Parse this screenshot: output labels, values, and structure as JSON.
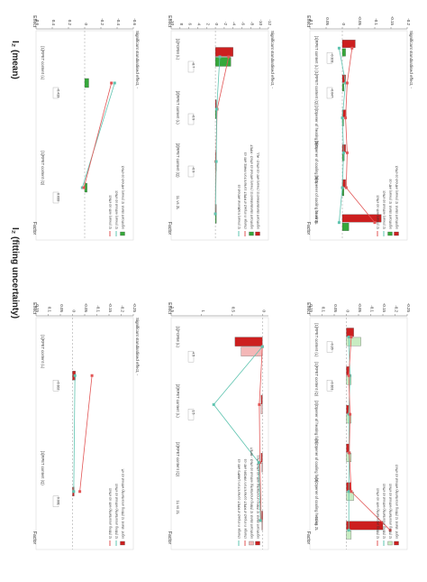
{
  "page": {
    "left_title": "I₂ (fitting uncertainty)",
    "right_title": "I₂ (mean)"
  },
  "colors": {
    "red": "#cc1f1f",
    "green": "#35a83a",
    "pink": "#f4b7b7",
    "lightgreen": "#c8ecc2",
    "redline": "#e25555",
    "greenline": "#5fc4b0",
    "axis": "#777777",
    "grid": "#dddddd"
  },
  "chart_data": [
    {
      "id": "p1",
      "type": "bar",
      "side": "left",
      "ylabel": "Effect",
      "xlabel": "Factor",
      "y2label": "Significant standardised effect, -",
      "ylim": [
        -0.25,
        0.15
      ],
      "yticks": [
        "0.15",
        "0.1",
        "0.05",
        "0",
        "-0.05",
        "-0.1",
        "-0.15",
        "-0.2",
        "-0.25"
      ],
      "categories": [
        "[1]RPET content (L)",
        "[1]RPET content (Q)"
      ],
      "series": [
        {
          "name": "signif. stand. I2 (fitting uncertainty) without o3 eff.",
          "kind": "bar",
          "color": "red",
          "values": [
            -0.012,
            -0.007
          ]
        },
        {
          "name": "I2 (fitting uncertainty) without o3 effect",
          "kind": "line",
          "color": "greenline",
          "values": [
            -0.01,
            -0.005
          ]
        },
        {
          "name": "I2 (fitting uncertainty) with o3 effect",
          "kind": "line",
          "color": "redline",
          "values": [
            -0.08,
            -0.03
          ]
        }
      ],
      "labels": [
        "-0.102",
        "0.001"
      ]
    },
    {
      "id": "p2",
      "type": "bar",
      "side": "right",
      "ylabel": "Effect",
      "xlabel": "Factor",
      "y2label": "Significant standardised effect, -",
      "ylim": [
        -0.6,
        0.6
      ],
      "yticks": [
        "0.6",
        "0.4",
        "0.2",
        "0",
        "-0.2",
        "-0.4",
        "-0.6"
      ],
      "categories": [
        "[1]RPET content (L)",
        "[1]RPET content (Q)"
      ],
      "series": [
        {
          "name": "significant stand. I2 (mean) without o3 effect",
          "kind": "bar",
          "color": "green",
          "values": [
            -0.05,
            -0.03
          ]
        },
        {
          "name": "I2 (mean) without o3 effect",
          "kind": "line",
          "color": "greenline",
          "values": [
            -0.37,
            0.03
          ]
        },
        {
          "name": "I2 (mean) with o3 effect",
          "kind": "line",
          "color": "redline",
          "values": [
            -0.33,
            0.01
          ]
        }
      ],
      "labels": [
        "-0.413",
        "0.033"
      ]
    },
    {
      "id": "p3",
      "type": "bar",
      "side": "left",
      "ylabel": "Effect",
      "xlabel": "Factor",
      "ylim": [
        -0.1,
        1.5
      ],
      "yticks": [
        "1.5",
        "1",
        "0.5",
        "0"
      ],
      "categories": [
        "[1]FORM (L)",
        "[2]RPET content (L)",
        "[2]RPET content (Q)",
        "1L vs 2L"
      ],
      "series": [
        {
          "name": "significant stand. I2 (fitting uncertainty) with o3 effect - ALL",
          "kind": "bar",
          "color": "red",
          "values": [
            0.45,
            0.02,
            0.02,
            0.01
          ]
        },
        {
          "name": "significant stand. I2 (fitting uncertainty) without o3 effect - RPET",
          "kind": "bar",
          "color": "pink",
          "values": [
            0.35,
            0.02,
            0.01,
            0.01
          ]
        },
        {
          "name": "change in impact of RPET content from VIRGIN with o3",
          "kind": "line",
          "color": "redline",
          "values": [
            0.0,
            0.05,
            0.04,
            0.02
          ]
        },
        {
          "name": "change in impact of RPET content from LAMPS with o3",
          "kind": "line",
          "color": "greenline",
          "values": [
            0.0,
            0.8,
            0.06,
            0.03
          ]
        }
      ],
      "labels": [
        "4.5",
        "1.5"
      ]
    },
    {
      "id": "p4",
      "type": "bar",
      "side": "right",
      "ylabel": "Effect",
      "xlabel": "Factor",
      "y2label": "Significant standardised effect, -",
      "ylim": [
        -12,
        10
      ],
      "yticks": [
        "10",
        "8",
        "6",
        "4",
        "2",
        "0",
        "-2",
        "-4",
        "-6",
        "-8",
        "-10",
        "-12"
      ],
      "categories": [
        "[1]FORM (L)",
        "[2]RPET content (L)",
        "[2]RPET content (Q)",
        "1L vs 2L"
      ],
      "series": [
        {
          "name": "significant standardised I2 (mean) with o3 effect - ALL",
          "kind": "bar",
          "color": "red",
          "values": [
            -4.0,
            -0.2,
            -0.1,
            -0.1
          ]
        },
        {
          "name": "significant standardised I2 (mean) without o3 effect - RPET",
          "kind": "bar",
          "color": "green",
          "values": [
            -3.5,
            -0.15,
            -0.1,
            -0.05
          ]
        },
        {
          "name": "change in impact of RPET content from FAKE with o3",
          "kind": "line",
          "color": "redline",
          "values": [
            -3.0,
            -0.4,
            -0.1,
            0.0
          ]
        },
        {
          "name": "I2 (mean) traditional without o3",
          "kind": "line",
          "color": "greenline",
          "values": [
            -1.0,
            -0.3,
            -0.2,
            0.0
          ]
        }
      ],
      "labels": [
        "-8.7",
        "-0.9",
        "-0.9"
      ]
    },
    {
      "id": "p5",
      "type": "bar",
      "side": "left",
      "ylabel": "Effect",
      "xlabel": "Factor",
      "ylim": [
        -0.25,
        0.15
      ],
      "yticks": [
        "0.15",
        "0.1",
        "0.05",
        "0",
        "-0.05",
        "-0.1",
        "-0.15",
        "-0.2",
        "-0.25"
      ],
      "categories": [
        "[1]RPET content (L)",
        "[1]RPET content (Q)",
        "[3]Opener of heating fans",
        "[3]Opener of cooling fans",
        "[3]Opener of cooling heating",
        "1L vs 2L"
      ],
      "series": [
        {
          "name": "signif. stand. I2 (fitting uncertainty) without o3 effect",
          "kind": "bar",
          "color": "red",
          "values": [
            -0.03,
            -0.01,
            -0.01,
            -0.01,
            -0.02,
            -0.15
          ]
        },
        {
          "name": "I2 (fitting uncertainty) without o3 effect",
          "kind": "bar",
          "color": "lightgreen",
          "values": [
            -0.06,
            -0.02,
            -0.02,
            -0.02,
            -0.03,
            -0.02
          ]
        },
        {
          "name": "I2 (fitting uncertainty) without o3 effect",
          "kind": "line",
          "color": "greenline",
          "values": [
            -0.01,
            -0.015,
            -0.01,
            -0.012,
            -0.01,
            -0.01
          ]
        },
        {
          "name": "I2 (fitting uncertainty) with o3 effect",
          "kind": "line",
          "color": "redline",
          "values": [
            -0.02,
            -0.01,
            -0.015,
            -0.012,
            -0.02,
            -0.18
          ]
        }
      ],
      "labels": [
        "-0.26",
        "-0.101"
      ]
    },
    {
      "id": "p6",
      "type": "bar",
      "side": "right",
      "ylabel": "Effect",
      "xlabel": "Factor",
      "y2label": "Significant standardised effect, -",
      "ylim": [
        -0.2,
        0.1
      ],
      "yticks": [
        "0.1",
        "0.05",
        "0",
        "-0.05",
        "-0.1",
        "-0.15",
        "-0.2"
      ],
      "categories": [
        "[1]RPET content (L)",
        "[1]RPET content (Q)",
        "[3]Opener of heating fans",
        "[3]Opener of cooling fans",
        "[3]Opener of cooling heating",
        "1L vs 2L"
      ],
      "series": [
        {
          "name": "significant stand. I2 (mean) without o3 effect",
          "kind": "bar",
          "color": "red",
          "values": [
            -0.04,
            -0.01,
            -0.012,
            -0.01,
            -0.01,
            -0.12
          ]
        },
        {
          "name": "significant stand. I2 (mean) with o3",
          "kind": "bar",
          "color": "green",
          "values": [
            -0.01,
            -0.005,
            -0.004,
            -0.006,
            -0.005,
            -0.02
          ]
        },
        {
          "name": "I2 (mean) without o3 effect",
          "kind": "line",
          "color": "greenline",
          "values": [
            0.01,
            -0.01,
            0.0,
            -0.004,
            0.0,
            0.01
          ]
        },
        {
          "name": "I2 (mean) with o3 effect",
          "kind": "line",
          "color": "redline",
          "values": [
            -0.03,
            -0.015,
            -0.01,
            -0.015,
            -0.012,
            -0.1
          ]
        }
      ],
      "labels": [
        "-0.101",
        "-0.047"
      ]
    }
  ]
}
